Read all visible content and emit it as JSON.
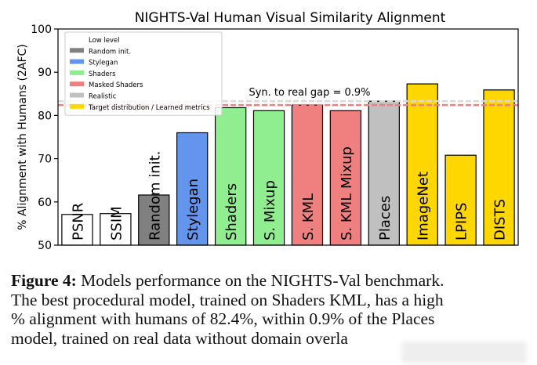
{
  "chart_data": {
    "type": "bar",
    "title": "NIGHTS-Val Human Visual Similarity Alignment",
    "xlabel": "",
    "ylabel": "% Alignment with Humans (2AFC)",
    "ylim": [
      50,
      100
    ],
    "yticks": [
      50,
      60,
      70,
      80,
      90,
      100
    ],
    "grid": false,
    "legend_position": "top-left",
    "categories": [
      "PSNR",
      "SSIM",
      "Random init.",
      "Stylegan",
      "Shaders",
      "S. Mixup",
      "S. KML",
      "S. KML Mixup",
      "Places",
      "ImageNet",
      "LPIPS",
      "DISTS"
    ],
    "values": [
      57.1,
      57.3,
      61.6,
      76.0,
      81.8,
      81.1,
      82.4,
      81.1,
      83.3,
      87.3,
      70.8,
      85.9
    ],
    "groups": [
      "Low level",
      "Low level",
      "Random init.",
      "Stylegan",
      "Shaders",
      "Shaders",
      "Masked Shaders",
      "Masked Shaders",
      "Realistic",
      "Target distribution / Learned metrics",
      "Target distribution / Learned metrics",
      "Target distribution / Learned metrics"
    ],
    "legend": [
      {
        "label": "Low level",
        "color": "#ffffff"
      },
      {
        "label": "Random init.",
        "color": "#808080"
      },
      {
        "label": "Stylegan",
        "color": "#6495ed"
      },
      {
        "label": "Shaders",
        "color": "#90ee90"
      },
      {
        "label": "Masked Shaders",
        "color": "#f08080"
      },
      {
        "label": "Realistic",
        "color": "#c0c0c0"
      },
      {
        "label": "Target distribution / Learned metrics",
        "color": "#ffd700"
      }
    ],
    "reference_lines": [
      {
        "value": 83.3,
        "style": "dashed",
        "color": "#d9d9d9"
      },
      {
        "value": 82.4,
        "style": "dashed",
        "color": "#f08080"
      }
    ],
    "annotation": "Syn. to real gap = 0.9%"
  },
  "caption": {
    "label": "Figure 4:",
    "lines": [
      " Models performance on the NIGHTS-Val benchmark.",
      "The best procedural model, trained on Shaders KML, has a high",
      "% alignment with humans of 82.4%, within 0.9% of the Places",
      "model, trained on real data without domain overla"
    ]
  }
}
